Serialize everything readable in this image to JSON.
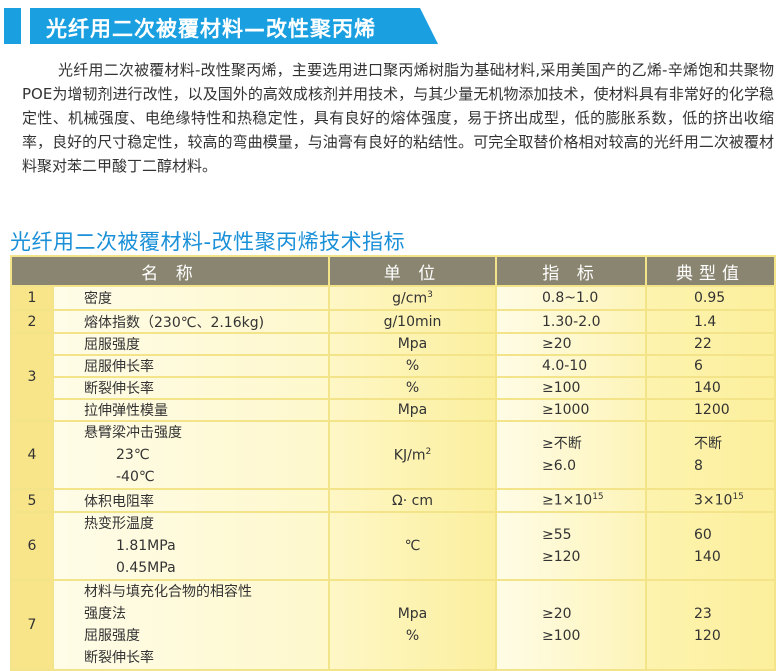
{
  "banner": {
    "title": "光纤用二次被覆材料—改性聚丙烯",
    "color": "#1aa0e0"
  },
  "intro": "光纤用二次被覆材料-改性聚丙烯，主要选用进口聚丙烯树脂为基础材料,采用美国产的乙烯-辛烯饱和共聚物POE为增韧剂进行改性，以及国外的高效成核剂并用技术，与其少量无机物添加技术，使材料具有非常好的化学稳定性、机械强度、电绝缘特性和热稳定性，具有良好的熔体强度，易于挤出成型，低的膨胀系数，低的挤出收缩率，良好的尺寸稳定性，较高的弯曲模量，与油膏有良好的粘结性。可完全取替价格相对较高的光纤用二次被覆材料聚对苯二甲酸丁二醇材料。",
  "section_title": "光纤用二次被覆材料-改性聚丙烯技术指标",
  "table": {
    "headers": [
      "名 称",
      "单 位",
      "指 标",
      "典型值"
    ],
    "r1": {
      "no": "1",
      "name": "密度",
      "unit": "g/cm",
      "unit_sup": "3",
      "index": "0.8~1.0",
      "typical": "0.95"
    },
    "r2": {
      "no": "2",
      "name": "熔体指数（230℃、2.16kg)",
      "unit": "g/10min",
      "index": "1.30-2.0",
      "typical": "1.4"
    },
    "r3": {
      "no": "3",
      "sub": [
        {
          "name": "屈服强度",
          "unit": "Mpa",
          "index": "≥20",
          "typical": "22"
        },
        {
          "name": "屈服伸长率",
          "unit": "%",
          "index": "4.0-10",
          "typical": "6"
        },
        {
          "name": "断裂伸长率",
          "unit": "%",
          "index": "≥100",
          "typical": "140"
        },
        {
          "name": "拉伸弹性模量",
          "unit": "Mpa",
          "index": "≥1000",
          "typical": "1200"
        }
      ]
    },
    "r4": {
      "no": "4",
      "name": [
        "悬臂梁冲击强度",
        "23℃",
        "-40℃"
      ],
      "unit": "KJ/m",
      "unit_sup": "2",
      "index": [
        "≥不断",
        "≥6.0"
      ],
      "typical": [
        "不断",
        "8"
      ]
    },
    "r5": {
      "no": "5",
      "name": "体积电阻率",
      "unit": "Ω· cm",
      "index": "≥1×10",
      "index_sup": "15",
      "typical": "3×10",
      "typical_sup": "15"
    },
    "r6": {
      "no": "6",
      "name": [
        "热变形温度",
        "1.81MPa",
        "0.45MPa"
      ],
      "unit": "℃",
      "index": [
        "≥55",
        "≥120"
      ],
      "typical": [
        "60",
        "140"
      ]
    },
    "r7": {
      "no": "7",
      "name": [
        "材料与填充化合物的相容性",
        "强度法",
        "屈服强度",
        "断裂伸长率"
      ],
      "unit": [
        "Mpa",
        "%"
      ],
      "index": [
        "≥20",
        "≥100"
      ],
      "typical": [
        "23",
        "120"
      ]
    }
  }
}
